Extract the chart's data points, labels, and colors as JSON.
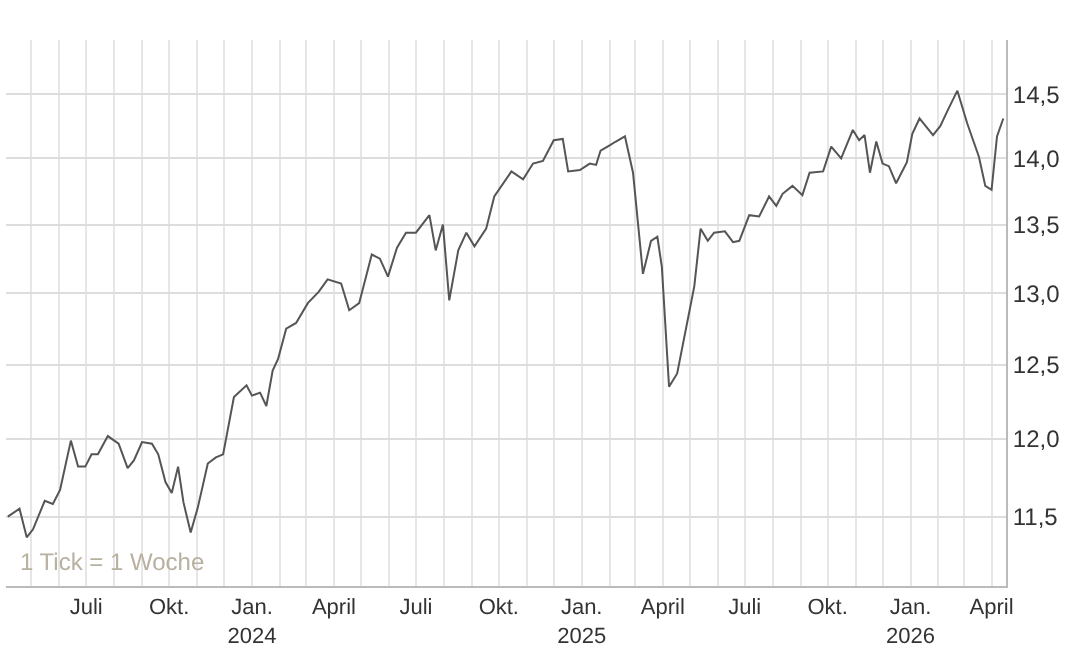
{
  "chart_data": {
    "type": "line",
    "log": "y",
    "grid": true,
    "marker": "none",
    "line_style": "solid",
    "annotations": [
      "1 Tick = 1 Woche"
    ],
    "x": [
      "2023-04-05",
      "2023-04-18",
      "2023-04-26",
      "2023-05-03",
      "2023-05-16",
      "2023-05-25",
      "2023-06-02",
      "2023-06-14",
      "2023-06-22",
      "2023-06-30",
      "2023-07-07",
      "2023-07-14",
      "2023-07-25",
      "2023-08-06",
      "2023-08-16",
      "2023-08-23",
      "2023-09-01",
      "2023-09-12",
      "2023-09-19",
      "2023-09-27",
      "2023-10-04",
      "2023-10-11",
      "2023-10-17",
      "2023-10-25",
      "2023-11-02",
      "2023-11-13",
      "2023-11-22",
      "2023-11-30",
      "2023-12-12",
      "2023-12-26",
      "2024-01-01",
      "2024-01-10",
      "2024-01-17",
      "2024-01-24",
      "2024-01-30",
      "2024-02-08",
      "2024-02-19",
      "2024-03-03",
      "2024-03-15",
      "2024-03-25",
      "2024-04-09",
      "2024-04-18",
      "2024-04-29",
      "2024-05-13",
      "2024-05-22",
      "2024-05-31",
      "2024-06-10",
      "2024-06-20",
      "2024-07-01",
      "2024-07-16",
      "2024-07-23",
      "2024-07-31",
      "2024-08-07",
      "2024-08-17",
      "2024-08-26",
      "2024-09-04",
      "2024-09-17",
      "2024-09-26",
      "2024-10-15",
      "2024-10-28",
      "2024-11-08",
      "2024-11-19",
      "2024-12-01",
      "2024-12-11",
      "2024-12-17",
      "2024-12-30",
      "2025-01-10",
      "2025-01-17",
      "2025-01-22",
      "2025-02-01",
      "2025-02-08",
      "2025-02-18",
      "2025-02-27",
      "2025-03-10",
      "2025-03-19",
      "2025-03-26",
      "2025-03-31",
      "2025-04-08",
      "2025-04-17",
      "2025-05-06",
      "2025-05-13",
      "2025-05-21",
      "2025-05-28",
      "2025-06-09",
      "2025-06-18",
      "2025-06-25",
      "2025-07-06",
      "2025-07-17",
      "2025-07-28",
      "2025-08-05",
      "2025-08-12",
      "2025-08-23",
      "2025-09-03",
      "2025-09-11",
      "2025-09-26",
      "2025-10-05",
      "2025-10-16",
      "2025-10-29",
      "2025-11-05",
      "2025-11-11",
      "2025-11-17",
      "2025-11-24",
      "2025-12-01",
      "2025-12-08",
      "2025-12-16",
      "2025-12-28",
      "2026-01-03",
      "2026-01-11",
      "2026-01-26",
      "2026-02-03",
      "2026-02-11",
      "2026-02-22",
      "2026-03-05",
      "2026-03-18",
      "2026-03-25",
      "2026-04-01",
      "2026-04-07",
      "2026-04-14"
    ],
    "series": [
      {
        "color": "#555555",
        "values": [
          11.5,
          11.55,
          11.37,
          11.42,
          11.6,
          11.58,
          11.67,
          11.99,
          11.82,
          11.82,
          11.9,
          11.9,
          12.02,
          11.97,
          11.81,
          11.86,
          11.98,
          11.97,
          11.9,
          11.72,
          11.65,
          11.82,
          11.59,
          11.4,
          11.56,
          11.84,
          11.88,
          11.9,
          12.28,
          12.36,
          12.29,
          12.31,
          12.22,
          12.46,
          12.54,
          12.75,
          12.79,
          12.93,
          13.01,
          13.1,
          13.07,
          12.88,
          12.93,
          13.28,
          13.25,
          13.12,
          13.33,
          13.44,
          13.44,
          13.57,
          13.31,
          13.5,
          12.95,
          13.31,
          13.44,
          13.34,
          13.47,
          13.71,
          13.9,
          13.84,
          13.96,
          13.98,
          14.14,
          14.15,
          13.9,
          13.91,
          13.96,
          13.95,
          14.06,
          14.1,
          14.13,
          14.17,
          13.89,
          13.14,
          13.38,
          13.41,
          13.19,
          12.35,
          12.44,
          13.05,
          13.47,
          13.38,
          13.44,
          13.45,
          13.37,
          13.38,
          13.57,
          13.56,
          13.71,
          13.64,
          13.73,
          13.79,
          13.72,
          13.89,
          13.9,
          14.09,
          14.0,
          14.22,
          14.14,
          14.18,
          13.89,
          14.13,
          13.96,
          13.94,
          13.81,
          13.97,
          14.19,
          14.31,
          14.18,
          14.25,
          14.37,
          14.53,
          14.27,
          14.01,
          13.79,
          13.76,
          14.17,
          14.31
        ]
      }
    ],
    "xlim": [
      "2023-04-03",
      "2026-04-17"
    ],
    "xticks": [
      {
        "value": "2023-05-01",
        "label": null
      },
      {
        "value": "2023-06-01",
        "label": null
      },
      {
        "value": "2023-07-01",
        "label": "Juli"
      },
      {
        "value": "2023-08-01",
        "label": null
      },
      {
        "value": "2023-09-01",
        "label": null
      },
      {
        "value": "2023-10-01",
        "label": "Okt."
      },
      {
        "value": "2023-11-01",
        "label": null
      },
      {
        "value": "2023-12-01",
        "label": null
      },
      {
        "value": "2024-01-01",
        "label": "Jan.\n2024"
      },
      {
        "value": "2024-02-01",
        "label": null
      },
      {
        "value": "2024-03-01",
        "label": null
      },
      {
        "value": "2024-04-01",
        "label": "April"
      },
      {
        "value": "2024-05-01",
        "label": null
      },
      {
        "value": "2024-06-01",
        "label": null
      },
      {
        "value": "2024-07-01",
        "label": "Juli"
      },
      {
        "value": "2024-08-01",
        "label": null
      },
      {
        "value": "2024-09-01",
        "label": null
      },
      {
        "value": "2024-10-01",
        "label": "Okt."
      },
      {
        "value": "2024-11-01",
        "label": null
      },
      {
        "value": "2024-12-01",
        "label": null
      },
      {
        "value": "2025-01-01",
        "label": "Jan.\n2025"
      },
      {
        "value": "2025-02-01",
        "label": null
      },
      {
        "value": "2025-03-01",
        "label": null
      },
      {
        "value": "2025-04-01",
        "label": "April"
      },
      {
        "value": "2025-05-01",
        "label": null
      },
      {
        "value": "2025-06-01",
        "label": null
      },
      {
        "value": "2025-07-01",
        "label": "Juli"
      },
      {
        "value": "2025-08-01",
        "label": null
      },
      {
        "value": "2025-09-01",
        "label": null
      },
      {
        "value": "2025-10-01",
        "label": "Okt."
      },
      {
        "value": "2025-11-01",
        "label": null
      },
      {
        "value": "2025-12-01",
        "label": null
      },
      {
        "value": "2026-01-01",
        "label": "Jan.\n2026"
      },
      {
        "value": "2026-02-01",
        "label": null
      },
      {
        "value": "2026-03-01",
        "label": null
      },
      {
        "value": "2026-04-01",
        "label": "April"
      }
    ],
    "ylim": [
      11.07,
      14.94
    ],
    "yticks": [
      {
        "value": 11.5,
        "label": "11,5"
      },
      {
        "value": 12,
        "label": "12,0"
      },
      {
        "value": 12.5,
        "label": "12,5"
      },
      {
        "value": 13,
        "label": "13,0"
      },
      {
        "value": 13.5,
        "label": "13,5"
      },
      {
        "value": 14,
        "label": "14,0"
      },
      {
        "value": 14.5,
        "label": "14,5"
      }
    ]
  }
}
